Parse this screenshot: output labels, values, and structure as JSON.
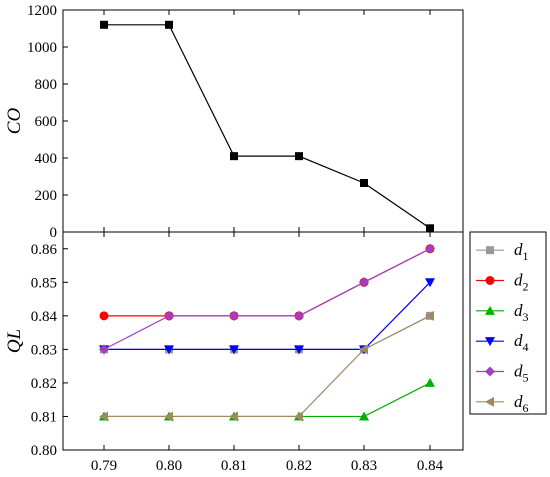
{
  "chart_data": [
    {
      "type": "line",
      "panel": "top",
      "ylabel": "CO",
      "ylim": [
        0,
        1200
      ],
      "y_ticks": [
        "0",
        "200",
        "400",
        "600",
        "800",
        "1000",
        "1200"
      ],
      "series": [
        {
          "color": "#000000",
          "marker": "square",
          "values": [
            1120,
            1120,
            410,
            410,
            265,
            20
          ]
        }
      ]
    },
    {
      "type": "line",
      "panel": "bottom",
      "ylabel": "QL",
      "ylim": [
        0.8,
        0.865
      ],
      "y_ticks": [
        "0.80",
        "0.81",
        "0.82",
        "0.83",
        "0.84",
        "0.85",
        "0.86"
      ],
      "x": [
        0.79,
        0.8,
        0.81,
        0.82,
        0.83,
        0.84
      ],
      "x_ticks": [
        "0.79",
        "0.80",
        "0.81",
        "0.82",
        "0.83",
        "0.84"
      ],
      "legend_position": "right",
      "series": [
        {
          "name": "d",
          "sub": "1",
          "color": "#999999",
          "marker": "square",
          "values": [
            0.83,
            0.83,
            0.83,
            0.83,
            0.83,
            0.84
          ]
        },
        {
          "name": "d",
          "sub": "2",
          "color": "#ff0000",
          "marker": "circle",
          "values": [
            0.84,
            0.84,
            0.84,
            0.84,
            0.85,
            0.86
          ]
        },
        {
          "name": "d",
          "sub": "3",
          "color": "#00b000",
          "marker": "triangle-up",
          "values": [
            0.81,
            0.81,
            0.81,
            0.81,
            0.81,
            0.82
          ]
        },
        {
          "name": "d",
          "sub": "4",
          "color": "#0000ff",
          "marker": "triangle-down",
          "values": [
            0.83,
            0.83,
            0.83,
            0.83,
            0.83,
            0.85
          ]
        },
        {
          "name": "d",
          "sub": "5",
          "color": "#a040c0",
          "marker": "diamond",
          "values": [
            0.83,
            0.84,
            0.84,
            0.84,
            0.85,
            0.86
          ]
        },
        {
          "name": "d",
          "sub": "6",
          "color": "#a08a60",
          "marker": "triangle-left",
          "values": [
            0.81,
            0.81,
            0.81,
            0.81,
            0.83,
            0.84
          ]
        }
      ]
    }
  ]
}
